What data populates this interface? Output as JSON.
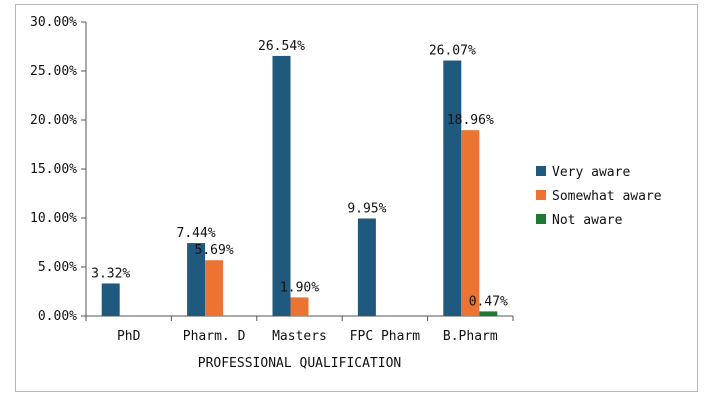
{
  "chart_data": {
    "type": "bar",
    "xlabel": "PROFESSIONAL QUALIFICATION",
    "ylabel": "",
    "ylim": [
      0,
      30
    ],
    "yticks": [
      "0.00%",
      "5.00%",
      "10.00%",
      "15.00%",
      "20.00%",
      "25.00%",
      "30.00%"
    ],
    "ytick_values": [
      0,
      5,
      10,
      15,
      20,
      25,
      30
    ],
    "categories": [
      "PhD",
      "Pharm. D",
      "Masters",
      "FPC Pharm",
      "B.Pharm"
    ],
    "series": [
      {
        "name": "Very aware",
        "color": "#1f5a7e",
        "values": [
          3.32,
          7.44,
          26.54,
          9.95,
          26.07
        ],
        "labels": [
          "3.32%",
          "7.44%",
          "26.54%",
          "9.95%",
          "26.07%"
        ]
      },
      {
        "name": "Somewhat aware",
        "color": "#ec7432",
        "values": [
          0,
          5.69,
          1.9,
          0,
          18.96
        ],
        "labels": [
          "",
          "5.69%",
          "1.90%",
          "",
          "18.96%"
        ]
      },
      {
        "name": "Not aware",
        "color": "#1e7a33",
        "values": [
          0,
          0,
          0,
          0,
          0.47
        ],
        "labels": [
          "",
          "",
          "",
          "",
          "0.47%"
        ]
      }
    ],
    "legend": "right",
    "grid": false
  }
}
